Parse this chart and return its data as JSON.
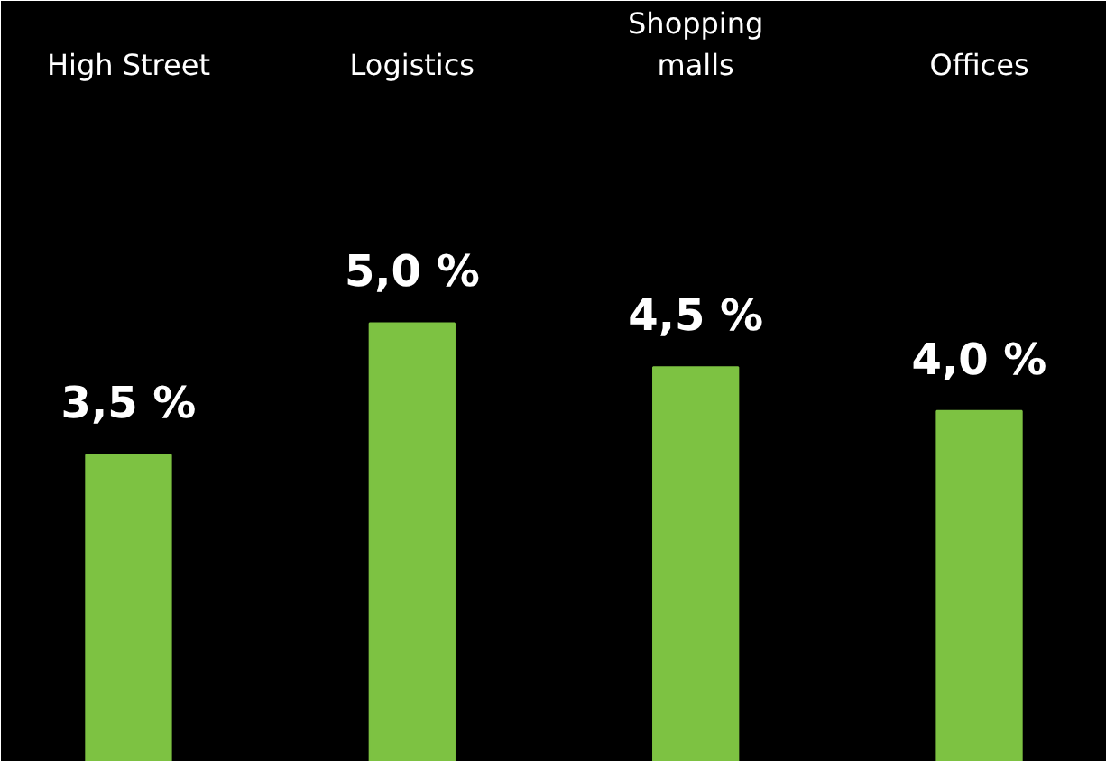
{
  "chart_data": {
    "type": "bar",
    "categories": [
      "High Street",
      "Logistics",
      "Shopping malls",
      "Offices"
    ],
    "values": [
      3.5,
      5.0,
      4.5,
      4.0
    ],
    "color": "#7dc242",
    "value_labels": [
      "3,5 %",
      "5,0 %",
      "4,5 %",
      "4,0 %"
    ],
    "grid": false
  }
}
